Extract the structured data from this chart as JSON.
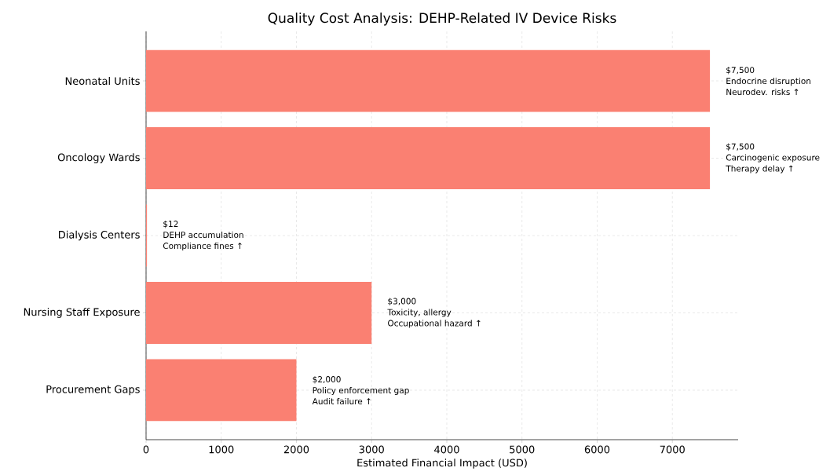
{
  "chart_data": {
    "type": "bar",
    "orientation": "horizontal",
    "title": "Quality Cost Analysis: DEHP-Related IV Device Risks",
    "xlabel": "Estimated Financial Impact (USD)",
    "categories": [
      "Neonatal Units",
      "Oncology Wards",
      "Dialysis Centers",
      "Nursing Staff Exposure",
      "Procurement Gaps"
    ],
    "values": [
      7500,
      7500,
      12,
      3000,
      2000
    ],
    "color": "#fa8072",
    "value_labels": [
      "$7,500",
      "$7,500",
      "$12",
      "$3,000",
      "$2,000"
    ],
    "annotations": [
      {
        "text": "Endocrine disruption",
        "x": 7500,
        "y": "Neonatal Units"
      },
      {
        "text": "Neurodev. risks ↑",
        "x": 7500,
        "y": "Neonatal Units"
      },
      {
        "text": "Carcinogenic exposure",
        "x": 7500,
        "y": "Oncology Wards"
      },
      {
        "text": "Therapy delay ↑",
        "x": 7500,
        "y": "Oncology Wards"
      },
      {
        "text": "DEHP accumulation",
        "x": 12,
        "y": "Dialysis Centers"
      },
      {
        "text": "Compliance fines ↑",
        "x": 12,
        "y": "Dialysis Centers"
      },
      {
        "text": "Toxicity, allergy",
        "x": 3000,
        "y": "Nursing Staff Exposure"
      },
      {
        "text": "Occupational hazard ↑",
        "x": 3000,
        "y": "Nursing Staff Exposure"
      },
      {
        "text": "Policy enforcement gap",
        "x": 2000,
        "y": "Procurement Gaps"
      },
      {
        "text": "Audit failure ↑",
        "x": 2000,
        "y": "Procurement Gaps"
      }
    ],
    "xlim": [
      0,
      7875
    ],
    "xticks": [
      0,
      1000,
      2000,
      3000,
      4000,
      5000,
      6000,
      7000
    ],
    "grid": true
  }
}
